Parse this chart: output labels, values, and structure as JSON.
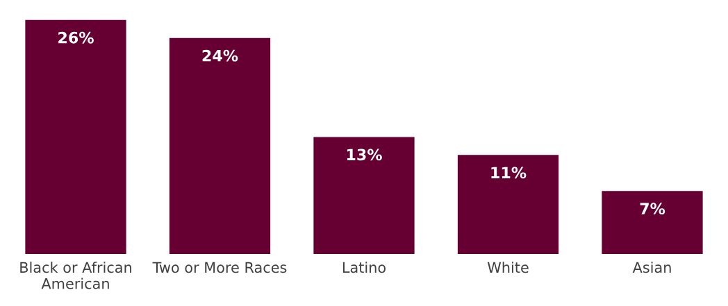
{
  "chart_data": {
    "type": "bar",
    "categories": [
      "Black or African\nAmerican",
      "Two or More Races",
      "Latino",
      "White",
      "Asian"
    ],
    "values": [
      26,
      24,
      13,
      11,
      7
    ],
    "value_labels": [
      "26%",
      "24%",
      "13%",
      "11%",
      "7%"
    ],
    "color": "#660033"
  }
}
